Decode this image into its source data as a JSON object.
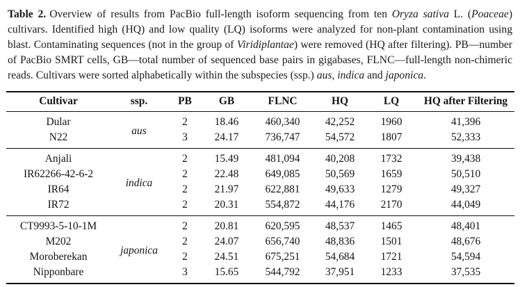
{
  "caption": {
    "label": "Table 2.",
    "segments": [
      {
        "t": "Overview of results from PacBio full-length isoform sequencing from ten "
      },
      {
        "t": "Oryza sativa",
        "i": true
      },
      {
        "t": " L. ("
      },
      {
        "t": "Poaceae",
        "i": true
      },
      {
        "t": ") cultivars. Identified high (HQ) and low quality (LQ) isoforms were analyzed for non-plant contamination using blast. Contaminating sequences (not in the group of "
      },
      {
        "t": "Viridiplantae",
        "i": true
      },
      {
        "t": ") were removed (HQ after filtering). PB—number of PacBio SMRT cells, GB—total number of sequenced base pairs in gigabases, FLNC—full-length non-chimeric reads. Cultivars were sorted alphabetically within the subspecies (ssp.) "
      },
      {
        "t": "aus",
        "i": true
      },
      {
        "t": ", "
      },
      {
        "t": "indica",
        "i": true
      },
      {
        "t": " and "
      },
      {
        "t": "japonica",
        "i": true
      },
      {
        "t": "."
      }
    ]
  },
  "table": {
    "columns": [
      "Cultivar",
      "ssp.",
      "PB",
      "GB",
      "FLNC",
      "HQ",
      "LQ",
      "HQ after Filtering"
    ],
    "groups": [
      {
        "ssp": "aus",
        "rows": [
          {
            "cultivar": "Dular",
            "pb": "2",
            "gb": "18.46",
            "flnc": "460,340",
            "hq": "42,252",
            "lq": "1960",
            "hq_filtered": "41,396"
          },
          {
            "cultivar": "N22",
            "pb": "3",
            "gb": "24.17",
            "flnc": "736,747",
            "hq": "54,572",
            "lq": "1807",
            "hq_filtered": "52,333"
          }
        ]
      },
      {
        "ssp": "indica",
        "rows": [
          {
            "cultivar": "Anjali",
            "pb": "2",
            "gb": "15.49",
            "flnc": "481,094",
            "hq": "40,208",
            "lq": "1732",
            "hq_filtered": "39,438"
          },
          {
            "cultivar": "IR62266-42-6-2",
            "pb": "2",
            "gb": "22.48",
            "flnc": "649,085",
            "hq": "50,569",
            "lq": "1659",
            "hq_filtered": "50,510"
          },
          {
            "cultivar": "IR64",
            "pb": "2",
            "gb": "21.97",
            "flnc": "622,881",
            "hq": "49,633",
            "lq": "1279",
            "hq_filtered": "49,327"
          },
          {
            "cultivar": "IR72",
            "pb": "2",
            "gb": "20.31",
            "flnc": "554,872",
            "hq": "44,176",
            "lq": "2170",
            "hq_filtered": "44,049"
          }
        ]
      },
      {
        "ssp": "japonica",
        "rows": [
          {
            "cultivar": "CT9993-5-10-1M",
            "pb": "2",
            "gb": "20.81",
            "flnc": "620,595",
            "hq": "48,537",
            "lq": "1465",
            "hq_filtered": "48,401"
          },
          {
            "cultivar": "M202",
            "pb": "2",
            "gb": "24.07",
            "flnc": "656,740",
            "hq": "48,836",
            "lq": "1501",
            "hq_filtered": "48,676"
          },
          {
            "cultivar": "Moroberekan",
            "pb": "2",
            "gb": "24.51",
            "flnc": "675,251",
            "hq": "54,684",
            "lq": "1721",
            "hq_filtered": "54,594"
          },
          {
            "cultivar": "Nipponbare",
            "pb": "3",
            "gb": "15.65",
            "flnc": "544,792",
            "hq": "37,951",
            "lq": "1233",
            "hq_filtered": "37,535"
          }
        ]
      }
    ]
  }
}
